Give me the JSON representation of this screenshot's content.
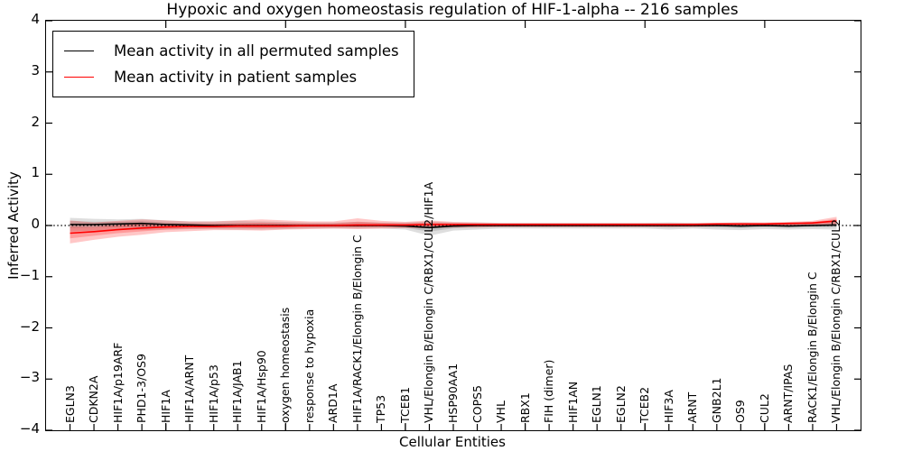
{
  "title": "Hypoxic and oxygen homeostasis regulation of HIF-1-alpha -- 216 samples",
  "legend": {
    "entries": [
      {
        "label": "Mean activity in all permuted samples",
        "color": "#000000"
      },
      {
        "label": "Mean activity in patient samples",
        "color": "#ff0000"
      }
    ]
  },
  "axes": {
    "ylabel": "Inferred Activity",
    "xlabel": "Cellular Entities",
    "ytick_labels": [
      "4",
      "3",
      "2",
      "1",
      "0",
      "−1",
      "−2",
      "−3",
      "−4"
    ],
    "yticks": [
      4,
      3,
      2,
      1,
      0,
      -1,
      -2,
      -3,
      -4
    ]
  },
  "chart_data": {
    "type": "line",
    "title": "Hypoxic and oxygen homeostasis regulation of HIF-1-alpha -- 216 samples",
    "xlabel": "Cellular Entities",
    "ylabel": "Inferred Activity",
    "ylim": [
      -4,
      4
    ],
    "xlim": [
      0,
      34
    ],
    "x_major_ticks": [
      5,
      10,
      15,
      20,
      25,
      30
    ],
    "grid": false,
    "legend_position": "upper-left",
    "zero_line": {
      "y": 0,
      "style": "dotted",
      "color": "#000000"
    },
    "categories": [
      "EGLN3",
      "CDKN2A",
      "HIF1A/p19ARF",
      "PHD1-3/OS9",
      "HIF1A",
      "HIF1A/ARNT",
      "HIF1A/p53",
      "HIF1A/JAB1",
      "HIF1A/Hsp90",
      "oxygen homeostasis",
      "response to hypoxia",
      "ARD1A",
      "HIF1A/RACK1/Elongin B/Elongin C",
      "TP53",
      "TCEB1",
      "VHL/Elongin B/Elongin C/RBX1/CUL2/HIF1A",
      "HSP90AA1",
      "COPS5",
      "VHL",
      "RBX1",
      "FIH (dimer)",
      "HIF1AN",
      "EGLN1",
      "EGLN2",
      "TCEB2",
      "HIF3A",
      "ARNT",
      "GNB2L1",
      "OS9",
      "CUL2",
      "ARNT/IPAS",
      "RACK1/Elongin B/Elongin C",
      "VHL/Elongin B/Elongin C/RBX1/CUL2"
    ],
    "series": [
      {
        "name": "Mean activity in all permuted samples",
        "color": "#000000",
        "values": [
          0.02,
          0.02,
          0.03,
          0.04,
          0.02,
          0.01,
          0.0,
          0.0,
          0.0,
          0.0,
          0.0,
          0.0,
          0.0,
          0.0,
          -0.01,
          -0.04,
          -0.01,
          0.0,
          0.0,
          0.0,
          0.0,
          0.0,
          0.0,
          0.0,
          0.0,
          0.0,
          0.0,
          0.0,
          -0.01,
          0.0,
          -0.01,
          0.0,
          0.01
        ]
      },
      {
        "name": "Mean activity in patient samples",
        "color": "#ff0000",
        "values": [
          -0.15,
          -0.12,
          -0.08,
          -0.05,
          -0.03,
          -0.02,
          -0.02,
          -0.01,
          -0.01,
          -0.01,
          0.0,
          0.0,
          0.01,
          0.01,
          0.01,
          0.02,
          0.02,
          0.02,
          0.02,
          0.02,
          0.02,
          0.02,
          0.02,
          0.02,
          0.02,
          0.02,
          0.02,
          0.03,
          0.03,
          0.03,
          0.04,
          0.05,
          0.09
        ]
      }
    ],
    "bands": [
      {
        "name": "permuted-samples-confidence-band",
        "color": "#000000",
        "opacity": 0.13,
        "upper": [
          0.15,
          0.13,
          0.12,
          0.13,
          0.1,
          0.08,
          0.08,
          0.09,
          0.08,
          0.07,
          0.06,
          0.06,
          0.07,
          0.06,
          0.06,
          0.08,
          0.06,
          0.06,
          0.05,
          0.05,
          0.05,
          0.05,
          0.05,
          0.05,
          0.05,
          0.06,
          0.05,
          0.05,
          0.06,
          0.05,
          0.06,
          0.07,
          0.08
        ],
        "lower": [
          -0.12,
          -0.1,
          -0.08,
          -0.09,
          -0.08,
          -0.07,
          -0.07,
          -0.08,
          -0.08,
          -0.07,
          -0.06,
          -0.06,
          -0.06,
          -0.06,
          -0.08,
          -0.2,
          -0.1,
          -0.08,
          -0.06,
          -0.06,
          -0.06,
          -0.06,
          -0.06,
          -0.06,
          -0.06,
          -0.08,
          -0.06,
          -0.08,
          -0.09,
          -0.07,
          -0.08,
          -0.07,
          -0.08
        ]
      },
      {
        "name": "patient-samples-confidence-band",
        "color": "#ff0000",
        "opacity": 0.22,
        "upper": [
          0.1,
          0.06,
          0.09,
          0.12,
          0.1,
          0.08,
          0.08,
          0.1,
          0.12,
          0.1,
          0.08,
          0.08,
          0.14,
          0.09,
          0.07,
          0.1,
          0.07,
          0.06,
          0.05,
          0.05,
          0.05,
          0.05,
          0.05,
          0.05,
          0.05,
          0.05,
          0.05,
          0.05,
          0.06,
          0.06,
          0.07,
          0.09,
          0.17
        ],
        "lower": [
          -0.35,
          -0.28,
          -0.22,
          -0.18,
          -0.13,
          -0.11,
          -0.09,
          -0.09,
          -0.1,
          -0.08,
          -0.07,
          -0.06,
          -0.07,
          -0.06,
          -0.05,
          -0.05,
          -0.04,
          -0.04,
          -0.03,
          -0.03,
          -0.03,
          -0.03,
          -0.03,
          -0.03,
          -0.03,
          -0.03,
          -0.03,
          -0.02,
          -0.02,
          -0.02,
          -0.02,
          -0.01,
          0.0
        ]
      }
    ]
  }
}
